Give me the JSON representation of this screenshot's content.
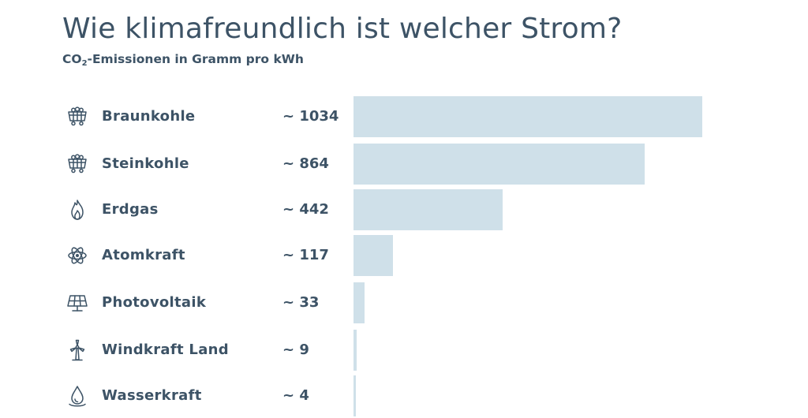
{
  "colors": {
    "text": "#3d5366",
    "bar": "#cfe0e9"
  },
  "chart_data": {
    "type": "bar",
    "orientation": "horizontal",
    "title": "Wie klimafreundlich ist welcher Strom?",
    "subtitle_prefix": "CO",
    "subtitle_sub": "2",
    "subtitle_suffix": "-Emissionen in Gramm pro kWh",
    "xlim": [
      0,
      1034
    ],
    "categories": [
      "Braunkohle",
      "Steinkohle",
      "Erdgas",
      "Atomkraft",
      "Photovoltaik",
      "Windkraft Land",
      "Wasserkraft"
    ],
    "values": [
      1034,
      864,
      442,
      117,
      33,
      9,
      4
    ],
    "value_labels": [
      "~ 1034",
      "~ 864",
      "~ 442",
      "~ 117",
      "~ 33",
      "~ 9",
      "~ 4"
    ],
    "icons": [
      "coal-wagon-icon",
      "coal-wagon-icon",
      "flame-icon",
      "atom-icon",
      "solar-panel-icon",
      "wind-turbine-icon",
      "water-drop-icon"
    ]
  }
}
